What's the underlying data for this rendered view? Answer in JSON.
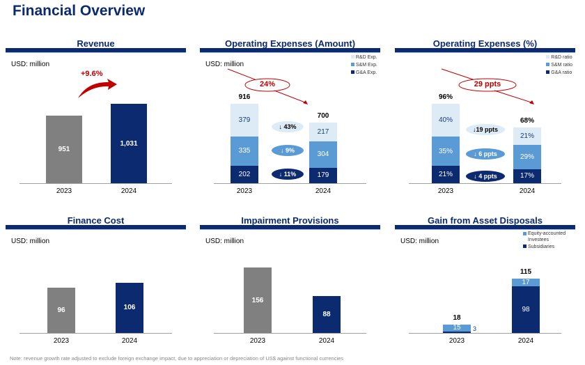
{
  "page_title": "Financial Overview",
  "note": "Note: revenue growth rate adjusted to exclude foreign exchange impact, due to appreciation or depreciation of US$ against functional currencies",
  "colors": {
    "navy": "#0b2a6f",
    "mid": "#5b9bd5",
    "light": "#ddebf7",
    "gray": "#808080",
    "red": "#c00000"
  },
  "chart_data": [
    {
      "id": "revenue",
      "type": "bar",
      "title": "Revenue",
      "unit": "USD: million",
      "categories": [
        "2023",
        "2024"
      ],
      "ylim": [
        500,
        1200
      ],
      "series": [
        {
          "values": [
            951,
            1031
          ],
          "labels": [
            "951",
            "1,031"
          ]
        }
      ],
      "bar_colors": [
        "gray",
        "navy"
      ],
      "annotation": "+9.6%"
    },
    {
      "id": "opex-amount",
      "type": "bar",
      "stacked": true,
      "title": "Operating Expenses (Amount)",
      "unit": "USD: million",
      "categories": [
        "2023",
        "2024"
      ],
      "ylim": [
        0,
        1200
      ],
      "series": [
        {
          "name": "G&A Exp.",
          "values": [
            202,
            179
          ],
          "color": "navy"
        },
        {
          "name": "S&M Exp.",
          "values": [
            335,
            304
          ],
          "color": "mid"
        },
        {
          "name": "R&D Exp.",
          "values": [
            379,
            217
          ],
          "color": "light"
        }
      ],
      "totals": [
        "916",
        "700"
      ],
      "changes": [
        "↓ 43%",
        "↓ 9%",
        "↓ 11%"
      ],
      "annotation": "24%"
    },
    {
      "id": "opex-pct",
      "type": "bar",
      "stacked": true,
      "title": "Operating Expenses (%)",
      "unit": "",
      "categories": [
        "2023",
        "2024"
      ],
      "ylim": [
        0,
        126
      ],
      "series": [
        {
          "name": "G&A ratio",
          "values": [
            21,
            17
          ],
          "color": "navy"
        },
        {
          "name": "S&M ratio",
          "values": [
            35,
            29
          ],
          "color": "mid"
        },
        {
          "name": "R&D ratio",
          "values": [
            40,
            21
          ],
          "color": "light"
        }
      ],
      "value_suffix": "%",
      "totals": [
        "96%",
        "68%"
      ],
      "changes": [
        "↓19 ppts",
        "↓ 6 ppts",
        "↓ 4 ppts"
      ],
      "annotation": "29 ppts"
    },
    {
      "id": "finance-cost",
      "type": "bar",
      "title": "Finance Cost",
      "unit": "USD: million",
      "categories": [
        "2023",
        "2024"
      ],
      "ylim": [
        0,
        220
      ],
      "series": [
        {
          "values": [
            96,
            106
          ],
          "labels": [
            "96",
            "106"
          ]
        }
      ],
      "bar_colors": [
        "gray",
        "navy"
      ]
    },
    {
      "id": "impairment",
      "type": "bar",
      "title": "Impairment Provisions",
      "unit": "USD: million",
      "categories": [
        "2023",
        "2024"
      ],
      "ylim": [
        0,
        250
      ],
      "series": [
        {
          "values": [
            156,
            88
          ],
          "labels": [
            "156",
            "88"
          ]
        }
      ],
      "bar_colors": [
        "gray",
        "navy"
      ]
    },
    {
      "id": "asset-disposals",
      "type": "bar",
      "stacked": true,
      "title": "Gain from Asset Disposals",
      "unit": "USD: million",
      "categories": [
        "2023",
        "2024"
      ],
      "ylim": [
        0,
        220
      ],
      "series": [
        {
          "name": "Subsidiaries",
          "values": [
            3,
            98
          ],
          "color": "navy"
        },
        {
          "name": "Equity-accounted Investees",
          "values": [
            15,
            17
          ],
          "color": "mid"
        }
      ],
      "totals": [
        "18",
        "115"
      ]
    }
  ]
}
